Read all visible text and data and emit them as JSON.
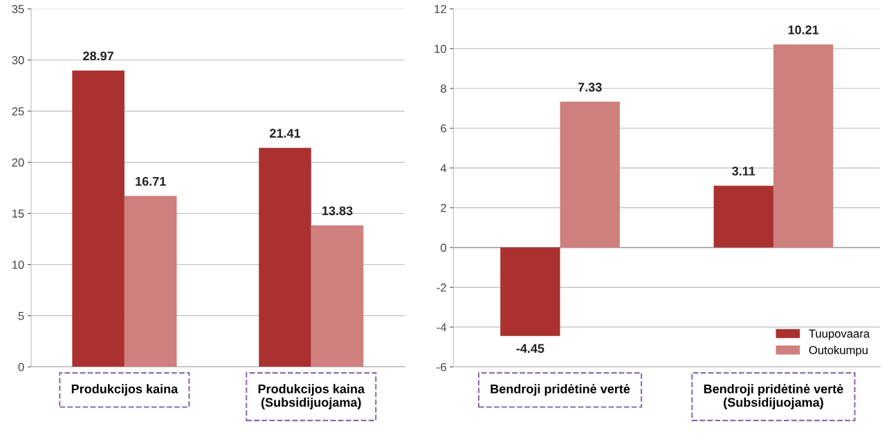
{
  "chart_data": [
    {
      "type": "bar",
      "categories": [
        "Produkcijos kaina",
        "Produkcijos kaina\n(Subsidijuojama)"
      ],
      "series": [
        {
          "color": "#ab3131",
          "values": [
            28.97,
            21.41
          ]
        },
        {
          "color": "#cf7f7d",
          "values": [
            16.71,
            13.83
          ]
        }
      ],
      "ylim": [
        0,
        35
      ],
      "yticks": [
        0,
        5,
        10,
        15,
        20,
        25,
        30,
        35
      ],
      "grid": "y",
      "data_labels": true,
      "legend": false
    },
    {
      "type": "bar",
      "categories": [
        "Bendroji pridėtinė vertė",
        "Bendroji pridėtinė vertė\n(Subsidijuojama)"
      ],
      "series": [
        {
          "name": "Tuupovaara",
          "color": "#ab3131",
          "values": [
            -4.45,
            3.11
          ]
        },
        {
          "name": "Outokumpu",
          "color": "#cf7f7d",
          "values": [
            7.33,
            10.21
          ]
        }
      ],
      "ylim": [
        -6,
        12
      ],
      "yticks": [
        -6,
        -4,
        -2,
        0,
        2,
        4,
        6,
        8,
        10,
        12
      ],
      "grid": "y",
      "data_labels": true,
      "legend": "bottom right"
    }
  ]
}
